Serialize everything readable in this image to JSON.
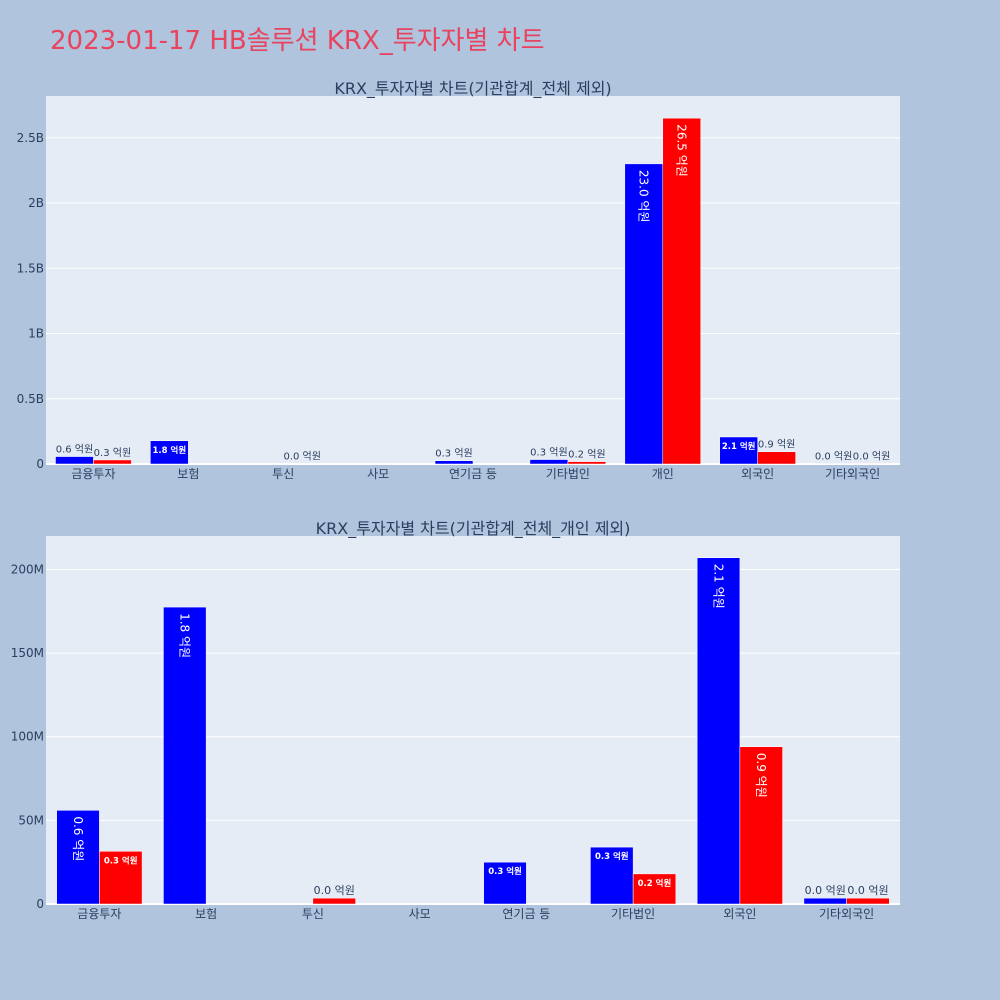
{
  "page_title": "2023-01-17 HB솔루션 KRX_투자자별 차트",
  "colors": {
    "background": "#b0c4de",
    "plot_bg": "#e5ecf6",
    "title": "#e8435f",
    "series_a": "#0000ff",
    "series_b": "#ff0000",
    "text": "#2a3f5f"
  },
  "chart_data": [
    {
      "type": "bar",
      "title": "KRX_투자자별 차트(기관합계_전체 제외)",
      "categories": [
        "금융투자",
        "보험",
        "투신",
        "사모",
        "연기금 등",
        "기타법인",
        "개인",
        "외국인",
        "기타외국인"
      ],
      "yticks": [
        {
          "value": 0,
          "label": "0"
        },
        {
          "value": 500000000,
          "label": "0.5B"
        },
        {
          "value": 1000000000,
          "label": "1B"
        },
        {
          "value": 1500000000,
          "label": "1.5B"
        },
        {
          "value": 2000000000,
          "label": "2B"
        },
        {
          "value": 2500000000,
          "label": "2.5B"
        }
      ],
      "ylim": [
        0,
        2820000000
      ],
      "grid": true,
      "series": [
        {
          "color": "#0000ff",
          "values": [
            57000000,
            178000000,
            null,
            null,
            25000000,
            34000000,
            2300000000,
            207000000,
            4000000
          ],
          "labels": [
            "0.6 억원",
            "1.8 억원",
            "",
            "",
            "0.3 억원",
            "0.3 억원",
            "23.0 억원",
            "2.1 억원",
            "0.0 억원"
          ]
        },
        {
          "color": "#ff0000",
          "values": [
            31000000,
            null,
            3000000,
            null,
            null,
            18000000,
            2650000000,
            94000000,
            4000000
          ],
          "labels": [
            "0.3 억원",
            "",
            "0.0 억원",
            "",
            "",
            "0.2 억원",
            "26.5 억원",
            "0.9 억원",
            "0.0 억원"
          ]
        }
      ]
    },
    {
      "type": "bar",
      "title": "KRX_투자자별 차트(기관합계_전체_개인 제외)",
      "categories": [
        "금융투자",
        "보험",
        "투신",
        "사모",
        "연기금 등",
        "기타법인",
        "외국인",
        "기타외국인"
      ],
      "yticks": [
        {
          "value": 0,
          "label": "0"
        },
        {
          "value": 50000000,
          "label": "50M"
        },
        {
          "value": 100000000,
          "label": "100M"
        },
        {
          "value": 150000000,
          "label": "150M"
        },
        {
          "value": 200000000,
          "label": "200M"
        }
      ],
      "ylim": [
        0,
        220000000
      ],
      "grid": true,
      "series": [
        {
          "color": "#0000ff",
          "values": [
            56000000,
            177500000,
            null,
            null,
            25000000,
            34000000,
            207000000,
            3500000
          ],
          "labels": [
            "0.6 억원",
            "1.8 억원",
            "",
            "",
            "0.3 억원",
            "0.3 억원",
            "2.1 억원",
            "0.0 억원"
          ]
        },
        {
          "color": "#ff0000",
          "values": [
            31500000,
            null,
            3500000,
            null,
            null,
            18000000,
            94000000,
            3500000
          ],
          "labels": [
            "0.3 억원",
            "",
            "0.0 억원",
            "",
            "",
            "0.2 억원",
            "0.9 억원",
            "0.0 억원"
          ]
        }
      ]
    }
  ]
}
